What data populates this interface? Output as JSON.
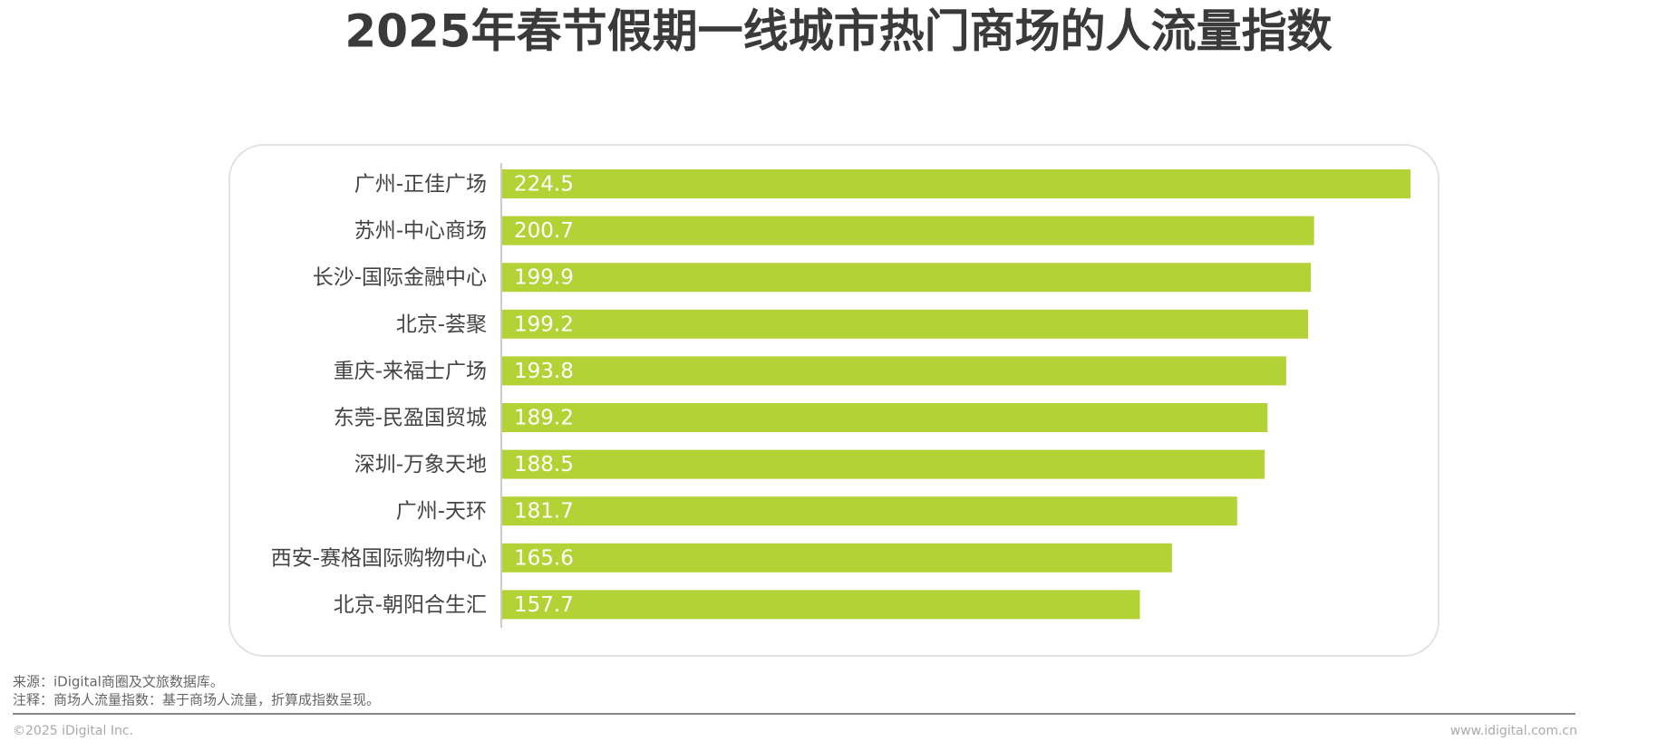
{
  "chart_data": {
    "type": "bar",
    "orientation": "horizontal",
    "title": "2025年春节假期一线城市热门商场的人流量指数",
    "categories": [
      "广州-正佳广场",
      "苏州-中心商场",
      "长沙-国际金融中心",
      "北京-荟聚",
      "重庆-来福士广场",
      "东莞-民盈国贸城",
      "深圳-万象天地",
      "广州-天环",
      "西安-赛格国际购物中心",
      "北京-朝阳合生汇"
    ],
    "values": [
      224.5,
      200.7,
      199.9,
      199.2,
      193.8,
      189.2,
      188.5,
      181.7,
      165.6,
      157.7
    ],
    "color": "#b2d235"
  },
  "footer": {
    "source": "来源：iDigital商圈及文旅数据库。",
    "note": "注释：商场人流量指数：基于商场人流量，折算成指数呈现。",
    "copyright": "©2025 iDigital Inc.",
    "website": "www.idigital.com.cn"
  }
}
